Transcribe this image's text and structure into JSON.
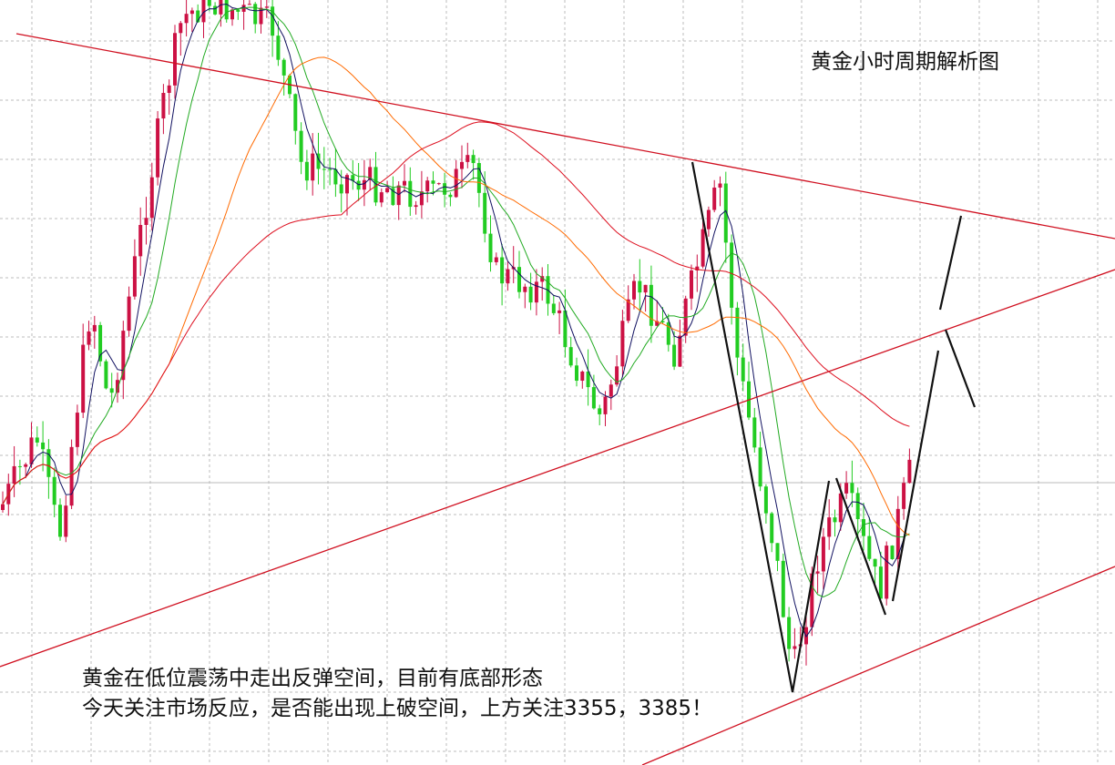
{
  "title": "黄金小时周期解析图",
  "annotation": [
    "黄金在低位震荡中走出反弹空间，目前有底部形态",
    "今天关注市场反应，是否能出现上破空间，上方关注3355，3385！"
  ]
}
